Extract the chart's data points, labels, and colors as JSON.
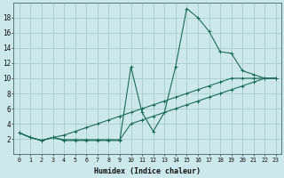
{
  "xlabel": "Humidex (Indice chaleur)",
  "ylabel": "",
  "bg_color": "#cde8ec",
  "grid_color": "#aacccc",
  "line_color": "#1a6b5a",
  "xlim": [
    -0.5,
    23.5
  ],
  "ylim": [
    0,
    20
  ],
  "xticks": [
    0,
    1,
    2,
    3,
    4,
    5,
    6,
    7,
    8,
    9,
    10,
    11,
    12,
    13,
    14,
    15,
    16,
    17,
    18,
    19,
    20,
    21,
    22,
    23
  ],
  "yticks": [
    2,
    4,
    6,
    8,
    10,
    12,
    14,
    16,
    18
  ],
  "series": [
    [
      2.8,
      2.2,
      1.8,
      2.2,
      1.8,
      1.8,
      1.8,
      1.8,
      1.8,
      1.8,
      11.5,
      5.5,
      3.0,
      5.5,
      11.5,
      19.2,
      18.0,
      16.2,
      13.5,
      13.3,
      11.0,
      10.5,
      10.0,
      10.0
    ],
    [
      2.8,
      2.2,
      1.8,
      2.2,
      1.9,
      1.9,
      1.9,
      1.9,
      1.9,
      1.9,
      4.0,
      4.5,
      5.0,
      5.5,
      6.0,
      6.5,
      7.0,
      7.5,
      8.0,
      8.5,
      9.0,
      9.5,
      10.0,
      10.0
    ],
    [
      2.8,
      2.2,
      1.8,
      2.2,
      2.5,
      3.0,
      3.5,
      4.0,
      4.5,
      5.0,
      5.5,
      6.0,
      6.5,
      7.0,
      7.5,
      8.0,
      8.5,
      9.0,
      9.5,
      10.0,
      10.0,
      10.0,
      10.0,
      10.0
    ]
  ]
}
